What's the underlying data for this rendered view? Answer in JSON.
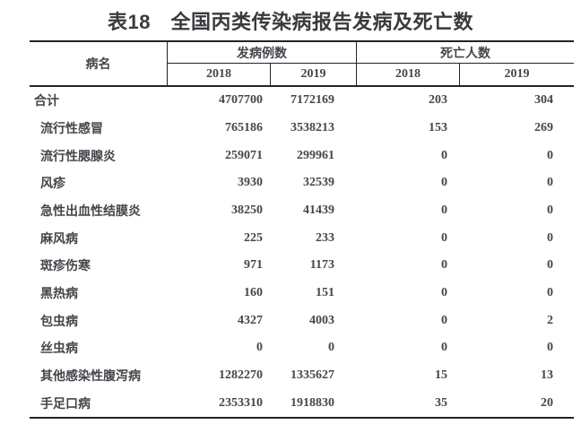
{
  "page": {
    "title": "表18　全国丙类传染病报告发病及死亡数"
  },
  "table": {
    "header": {
      "disease_col": "病名",
      "cases_group": "发病例数",
      "deaths_group": "死亡人数",
      "cases_year_2018": "2018",
      "cases_year_2019": "2019",
      "deaths_year_2018": "2018",
      "deaths_year_2019": "2019"
    },
    "rows": [
      {
        "name": "合计",
        "cases_2018": "4707700",
        "cases_2019": "7172169",
        "deaths_2018": "203",
        "deaths_2019": "304"
      },
      {
        "name": "流行性感冒",
        "cases_2018": "765186",
        "cases_2019": "3538213",
        "deaths_2018": "153",
        "deaths_2019": "269"
      },
      {
        "name": "流行性腮腺炎",
        "cases_2018": "259071",
        "cases_2019": "299961",
        "deaths_2018": "0",
        "deaths_2019": "0"
      },
      {
        "name": "风疹",
        "cases_2018": "3930",
        "cases_2019": "32539",
        "deaths_2018": "0",
        "deaths_2019": "0"
      },
      {
        "name": "急性出血性结膜炎",
        "cases_2018": "38250",
        "cases_2019": "41439",
        "deaths_2018": "0",
        "deaths_2019": "0"
      },
      {
        "name": "麻风病",
        "cases_2018": "225",
        "cases_2019": "233",
        "deaths_2018": "0",
        "deaths_2019": "0"
      },
      {
        "name": "斑疹伤寒",
        "cases_2018": "971",
        "cases_2019": "1173",
        "deaths_2018": "0",
        "deaths_2019": "0"
      },
      {
        "name": "黑热病",
        "cases_2018": "160",
        "cases_2019": "151",
        "deaths_2018": "0",
        "deaths_2019": "0"
      },
      {
        "name": "包虫病",
        "cases_2018": "4327",
        "cases_2019": "4003",
        "deaths_2018": "0",
        "deaths_2019": "2"
      },
      {
        "name": "丝虫病",
        "cases_2018": "0",
        "cases_2019": "0",
        "deaths_2018": "0",
        "deaths_2019": "0"
      },
      {
        "name": "其他感染性腹泻病",
        "cases_2018": "1282270",
        "cases_2019": "1335627",
        "deaths_2018": "15",
        "deaths_2019": "13"
      },
      {
        "name": "手足口病",
        "cases_2018": "2353310",
        "cases_2019": "1918830",
        "deaths_2018": "35",
        "deaths_2019": "20"
      }
    ],
    "colors": {
      "text": "#45454b",
      "title": "#3a3a3e",
      "border": "#232327",
      "background": "#ffffff"
    }
  }
}
